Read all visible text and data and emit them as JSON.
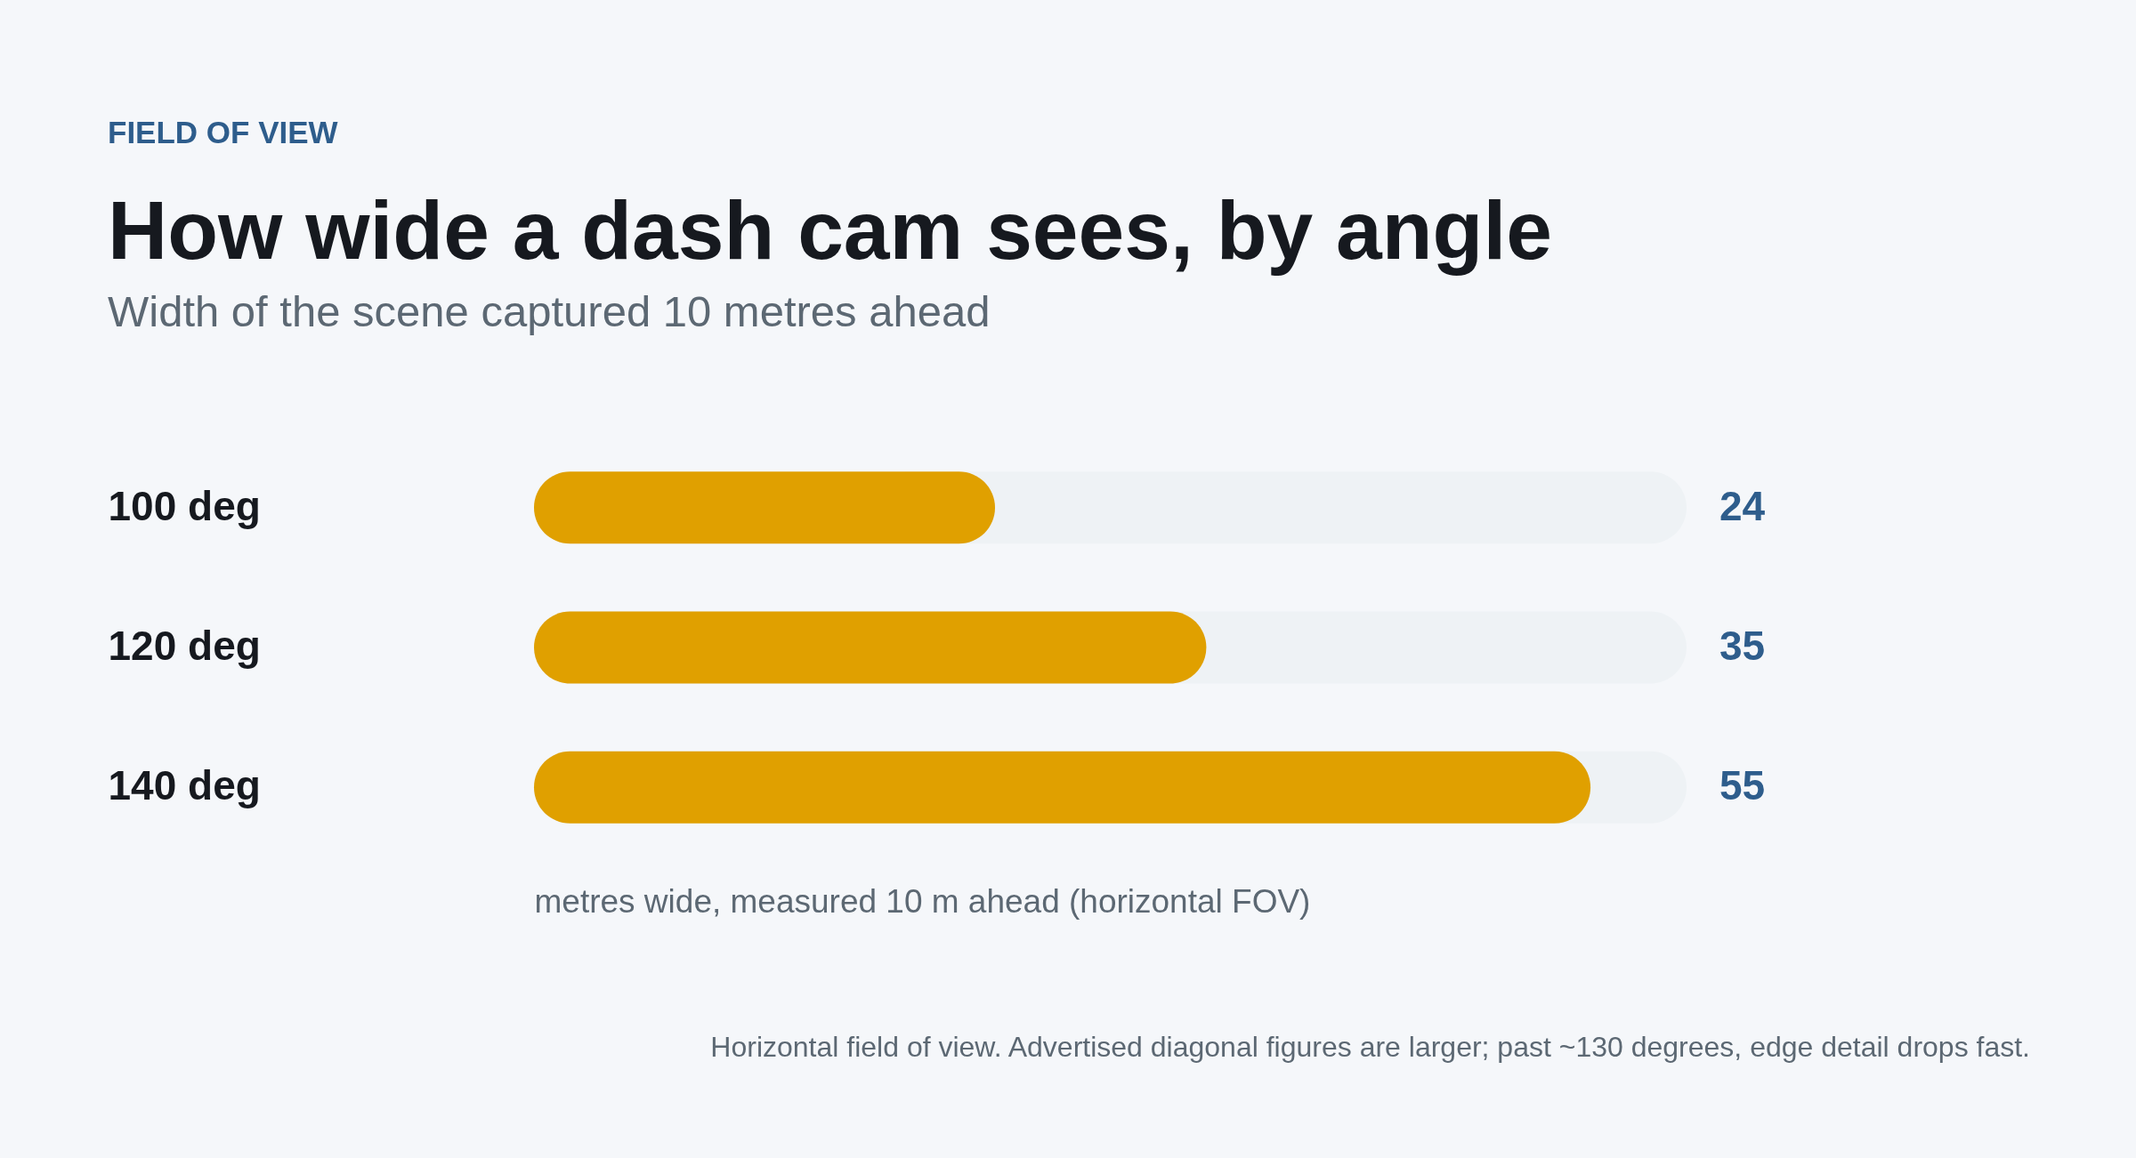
{
  "chart_data": {
    "type": "bar",
    "orientation": "horizontal",
    "title": "How wide a dash cam sees, by angle",
    "subtitle": "Width of the scene captured 10 metres ahead",
    "xlabel": "metres wide, measured 10 m ahead (horizontal FOV)",
    "categories": [
      "100 deg",
      "120 deg",
      "140 deg"
    ],
    "values": [
      24,
      35,
      55
    ],
    "color": "#e0a000",
    "xlim": [
      0,
      60
    ],
    "data_labels": true,
    "tick_labels": "y",
    "annotations": [
      "FIELD OF VIEW",
      "Horizontal field of view. Advertised diagonal figures are larger; past ~130 degrees, edge detail drops fast."
    ]
  }
}
